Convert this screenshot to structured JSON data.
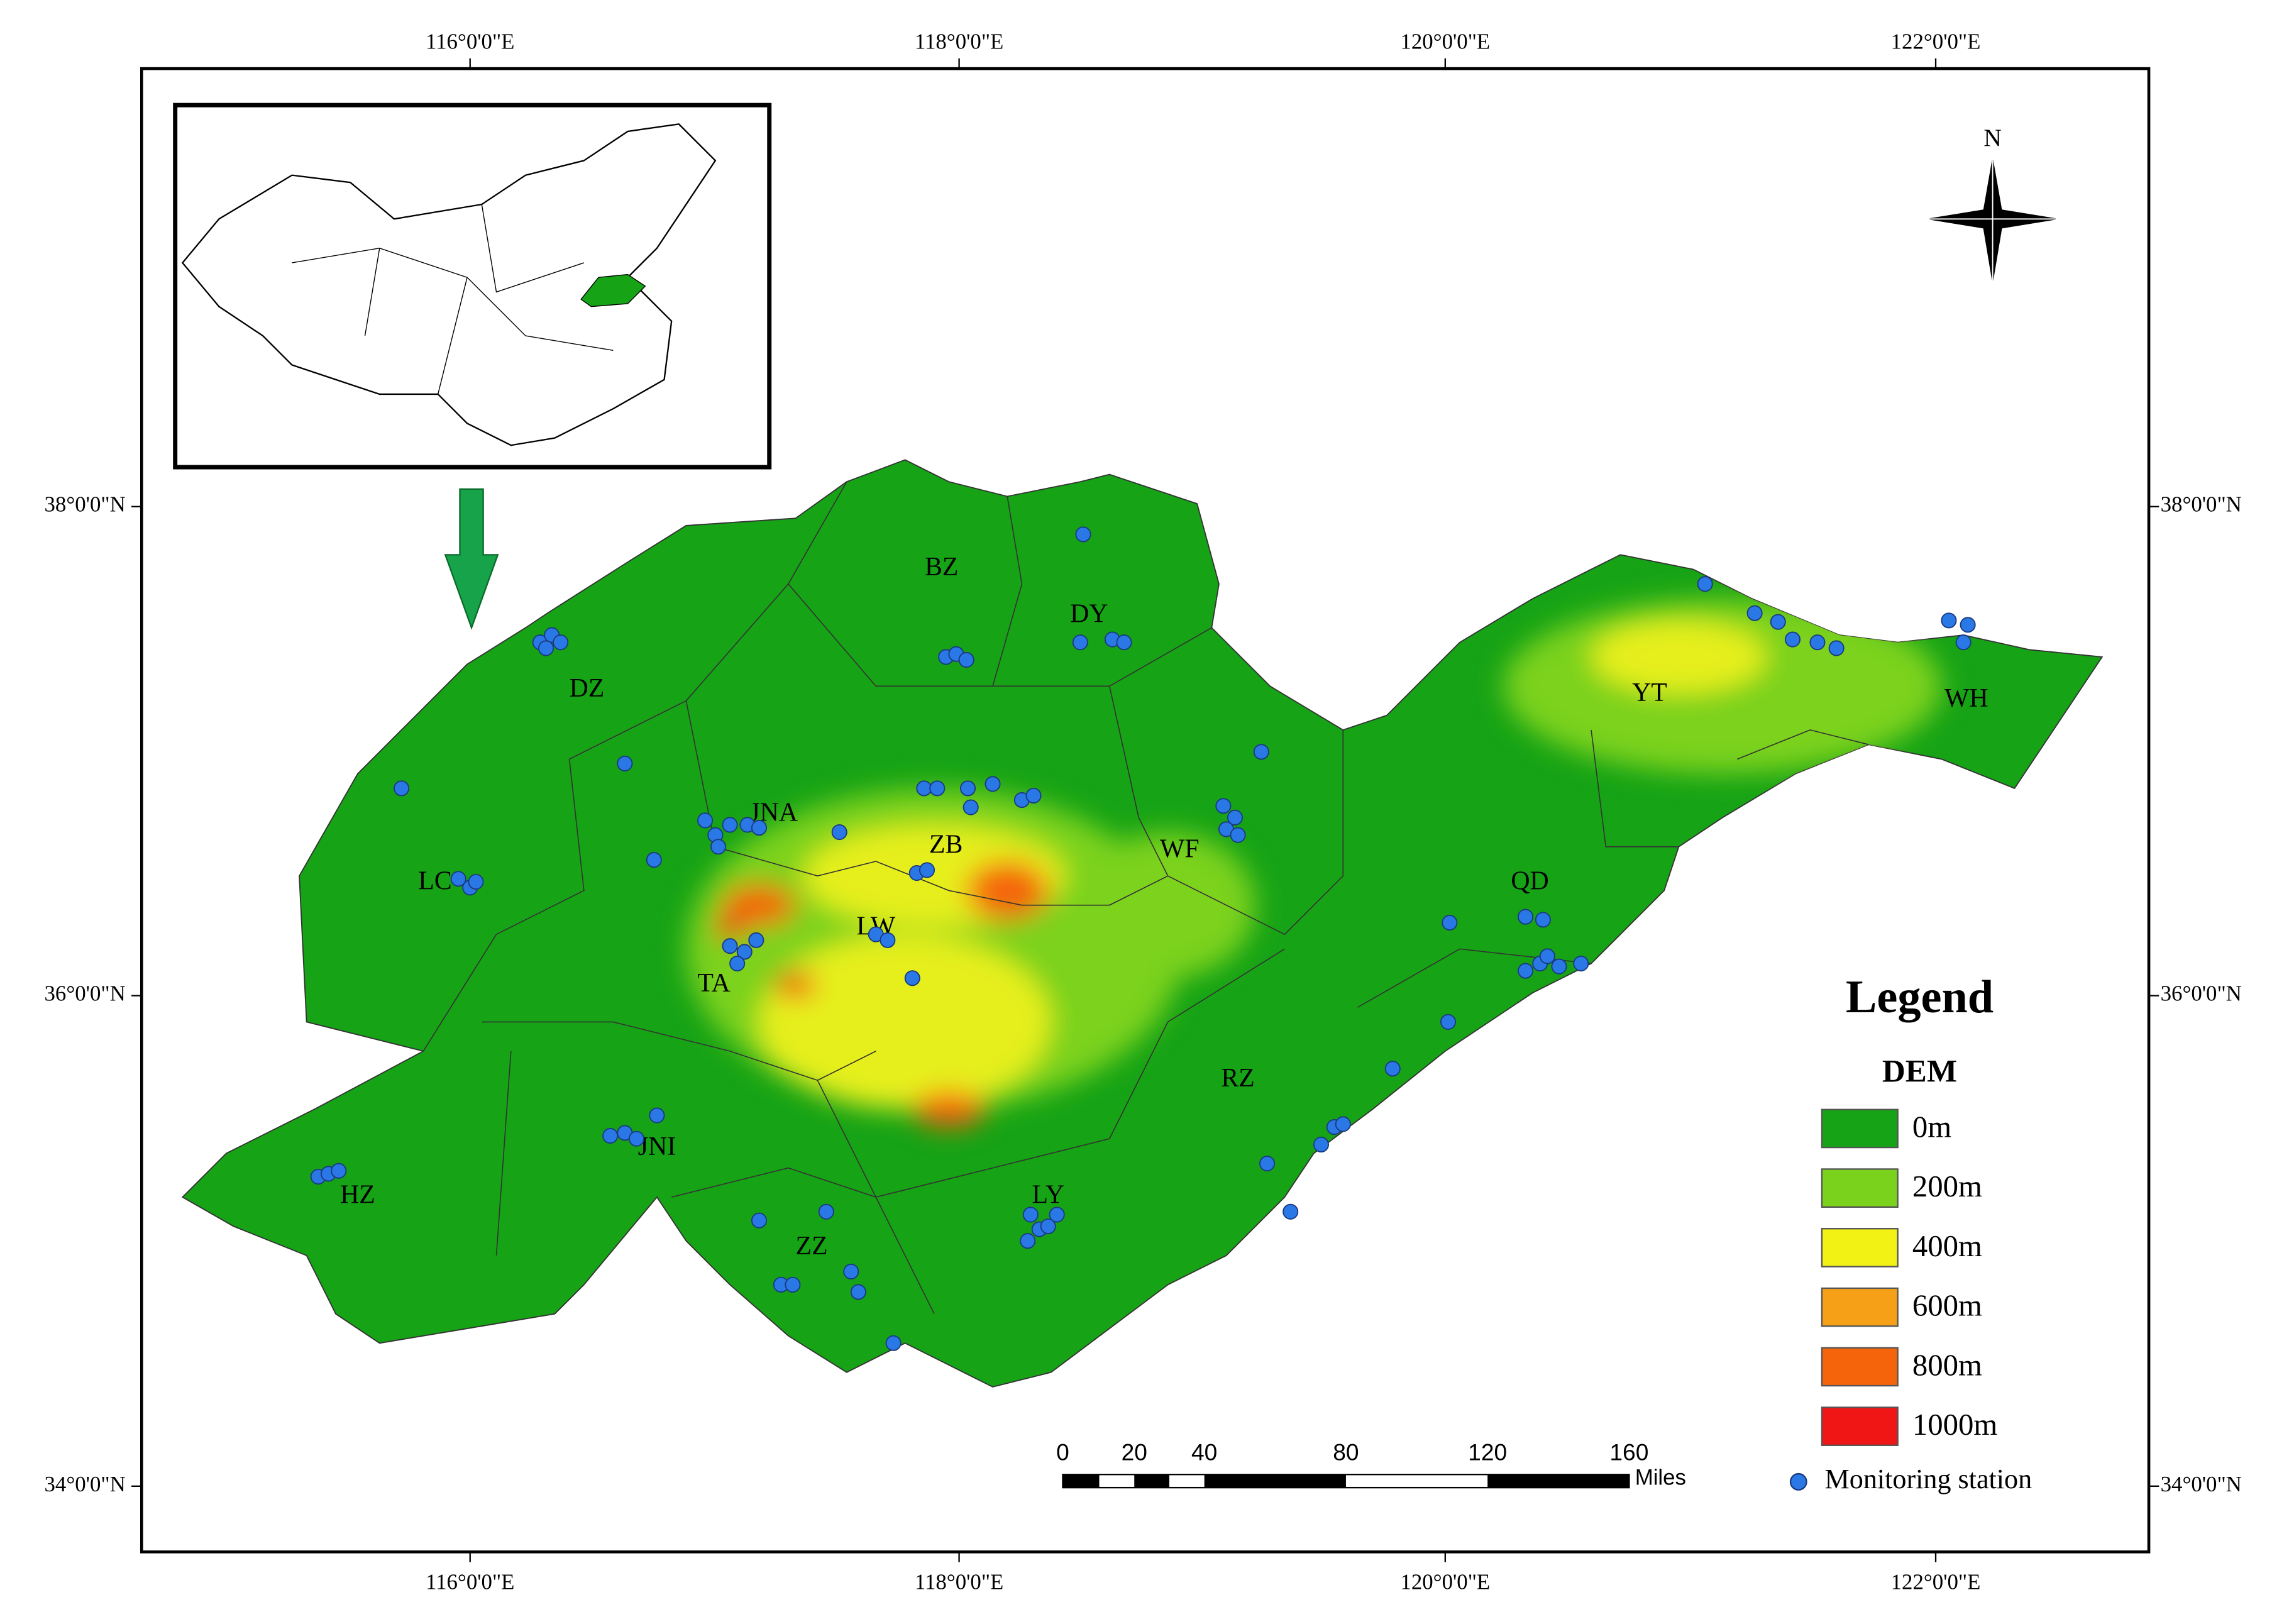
{
  "map": {
    "lon_labels": [
      "116°0'0\"E",
      "118°0'0\"E",
      "120°0'0\"E",
      "122°0'0\"E"
    ],
    "lat_labels": [
      "38°0'0\"N",
      "36°0'0\"N",
      "34°0'0\"N"
    ],
    "north": "N",
    "cities": [
      "DZ",
      "BZ",
      "DY",
      "YT",
      "WH",
      "JNA",
      "ZB",
      "WF",
      "LC",
      "LW",
      "QD",
      "TA",
      "RZ",
      "JNI",
      "HZ",
      "LY",
      "ZZ"
    ],
    "legend": {
      "title": "Legend",
      "subtitle": "DEM",
      "entries": [
        "0m",
        "200m",
        "400m",
        "600m",
        "800m",
        "1000m"
      ],
      "colors": [
        "#16a316",
        "#7bd21c",
        "#f2f215",
        "#f5a017",
        "#f5630b",
        "#f01616"
      ],
      "station": "Monitoring station"
    },
    "scale_bar": {
      "labels": [
        "0",
        "20",
        "40",
        "80",
        "120",
        "160"
      ],
      "unit": "Miles"
    }
  }
}
